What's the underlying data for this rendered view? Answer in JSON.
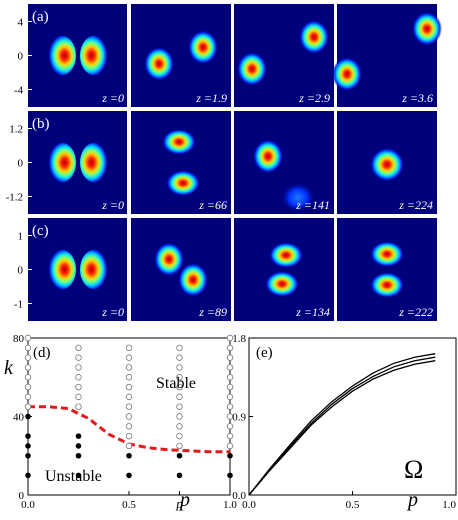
{
  "figure": {
    "colors": {
      "background": "#00007a",
      "frame": "#ffffff",
      "cold": "#001aff",
      "warm": "#ff1e00",
      "dashed_curve": "#e31a1c",
      "text": "#000000"
    },
    "rows": [
      {
        "label": "(a)",
        "y_ticks": [
          "4",
          "0",
          "-4"
        ],
        "panels": [
          {
            "z_label": "z =0",
            "blobs": [
              {
                "dx": -0.17,
                "dy": 0,
                "type": "dipole-left"
              },
              {
                "dx": 0.17,
                "dy": 0,
                "type": "dipole-right"
              }
            ]
          },
          {
            "z_label": "z =1.9",
            "blobs": [
              {
                "dx": -0.22,
                "dy": 0.08,
                "type": "round"
              },
              {
                "dx": 0.22,
                "dy": -0.08,
                "type": "round"
              }
            ]
          },
          {
            "z_label": "z =2.9",
            "blobs": [
              {
                "dx": -0.32,
                "dy": 0.13,
                "type": "round"
              },
              {
                "dx": 0.3,
                "dy": -0.18,
                "type": "round"
              }
            ]
          },
          {
            "z_label": "z =3.6",
            "blobs": [
              {
                "dx": -0.4,
                "dy": 0.18,
                "type": "round"
              },
              {
                "dx": 0.4,
                "dy": -0.26,
                "type": "round"
              }
            ]
          }
        ]
      },
      {
        "label": "(b)",
        "y_ticks": [
          "1.2",
          "0",
          "-1.2"
        ],
        "panels": [
          {
            "z_label": "z =0",
            "blobs": [
              {
                "dx": -0.17,
                "dy": 0,
                "type": "dipole-left"
              },
              {
                "dx": 0.17,
                "dy": 0,
                "type": "dipole-right"
              }
            ]
          },
          {
            "z_label": "z =66",
            "blobs": [
              {
                "dx": -0.02,
                "dy": -0.2,
                "type": "wide"
              },
              {
                "dx": 0.02,
                "dy": 0.2,
                "type": "wide"
              }
            ]
          },
          {
            "z_label": "z =141",
            "blobs": [
              {
                "dx": -0.16,
                "dy": -0.06,
                "type": "round"
              },
              {
                "dx": 0.14,
                "dy": 0.34,
                "type": "faint"
              }
            ]
          },
          {
            "z_label": "z =224",
            "blobs": [
              {
                "dx": 0.0,
                "dy": 0.02,
                "type": "single"
              }
            ]
          }
        ]
      },
      {
        "label": "(c)",
        "y_ticks": [
          "1",
          "0",
          "-1"
        ],
        "panels": [
          {
            "z_label": "z =0",
            "blobs": [
              {
                "dx": -0.17,
                "dy": 0,
                "type": "dipole-left"
              },
              {
                "dx": 0.17,
                "dy": 0,
                "type": "dipole-right"
              }
            ]
          },
          {
            "z_label": "z =89",
            "blobs": [
              {
                "dx": -0.12,
                "dy": -0.1,
                "type": "round"
              },
              {
                "dx": 0.12,
                "dy": 0.1,
                "type": "round"
              }
            ]
          },
          {
            "z_label": "z =134",
            "blobs": [
              {
                "dx": 0.02,
                "dy": -0.14,
                "type": "wide"
              },
              {
                "dx": -0.02,
                "dy": 0.14,
                "type": "wide"
              }
            ]
          },
          {
            "z_label": "z =222",
            "blobs": [
              {
                "dx": 0.0,
                "dy": -0.15,
                "type": "wide"
              },
              {
                "dx": 0.0,
                "dy": 0.15,
                "type": "wide"
              }
            ]
          }
        ]
      }
    ]
  },
  "chart_data": [
    {
      "type": "scatter",
      "panel_label": "(d)",
      "xlabel": "p",
      "ylabel": "k",
      "xlim": [
        0,
        1
      ],
      "ylim": [
        0,
        80
      ],
      "x_ticks": [
        "0.0",
        "0.5",
        "1.0"
      ],
      "x_tick_values": [
        0,
        0.5,
        1
      ],
      "extra_x_ticks": [
        {
          "label": "p",
          "value": 0.75
        }
      ],
      "y_ticks": [
        "0",
        "40",
        "80"
      ],
      "y_tick_values": [
        0,
        40,
        80
      ],
      "region_labels": {
        "upper": "Stable",
        "lower": "Unstable"
      },
      "series": [
        {
          "marker": "open",
          "points": [
            [
              0,
              45
            ],
            [
              0,
              50
            ],
            [
              0,
              55
            ],
            [
              0,
              60
            ],
            [
              0,
              65
            ],
            [
              0,
              70
            ],
            [
              0,
              75
            ],
            [
              0,
              80
            ],
            [
              0.25,
              45
            ],
            [
              0.25,
              50
            ],
            [
              0.25,
              55
            ],
            [
              0.25,
              60
            ],
            [
              0.25,
              65
            ],
            [
              0.25,
              70
            ],
            [
              0.25,
              75
            ],
            [
              0.5,
              25
            ],
            [
              0.5,
              30
            ],
            [
              0.5,
              35
            ],
            [
              0.5,
              40
            ],
            [
              0.5,
              45
            ],
            [
              0.5,
              50
            ],
            [
              0.5,
              55
            ],
            [
              0.5,
              60
            ],
            [
              0.5,
              65
            ],
            [
              0.5,
              70
            ],
            [
              0.5,
              75
            ],
            [
              0.75,
              25
            ],
            [
              0.75,
              30
            ],
            [
              0.75,
              35
            ],
            [
              0.75,
              40
            ],
            [
              0.75,
              45
            ],
            [
              0.75,
              50
            ],
            [
              0.75,
              55
            ],
            [
              0.75,
              60
            ],
            [
              0.75,
              65
            ],
            [
              0.75,
              70
            ],
            [
              0.75,
              75
            ],
            [
              1,
              25
            ],
            [
              1,
              30
            ],
            [
              1,
              35
            ],
            [
              1,
              40
            ],
            [
              1,
              45
            ],
            [
              1,
              50
            ],
            [
              1,
              55
            ],
            [
              1,
              60
            ],
            [
              1,
              65
            ],
            [
              1,
              70
            ],
            [
              1,
              75
            ],
            [
              1,
              80
            ]
          ]
        },
        {
          "marker": "filled",
          "points": [
            [
              0,
              10
            ],
            [
              0,
              20
            ],
            [
              0,
              25
            ],
            [
              0,
              30
            ],
            [
              0,
              40
            ],
            [
              0.25,
              10
            ],
            [
              0.25,
              20
            ],
            [
              0.25,
              25
            ],
            [
              0.25,
              30
            ],
            [
              0.5,
              10
            ],
            [
              0.5,
              20
            ],
            [
              0.75,
              10
            ],
            [
              0.75,
              20
            ],
            [
              1,
              10
            ],
            [
              1,
              20
            ]
          ]
        }
      ],
      "boundary": {
        "style": "dashed",
        "x": [
          0,
          0.1,
          0.2,
          0.3,
          0.4,
          0.5,
          0.6,
          0.7,
          0.8,
          0.9,
          1.0
        ],
        "y": [
          45,
          45,
          44,
          39,
          31,
          26,
          24,
          23,
          22.5,
          22,
          22
        ]
      }
    },
    {
      "type": "line",
      "panel_label": "(e)",
      "xlabel": "p",
      "ylabel": "",
      "annotation": "Ω",
      "xlim": [
        0,
        1
      ],
      "ylim": [
        0,
        1.8
      ],
      "x_ticks": [
        "0.0",
        "0.5",
        "1.0"
      ],
      "x_tick_values": [
        0,
        0.5,
        1
      ],
      "y_ticks": [
        "0.0",
        "0.9",
        "1.8"
      ],
      "y_tick_values": [
        0,
        0.9,
        1.8
      ],
      "series": [
        {
          "x": [
            0,
            0.1,
            0.2,
            0.3,
            0.4,
            0.5,
            0.6,
            0.7,
            0.8,
            0.9
          ],
          "y": [
            0,
            0.3,
            0.58,
            0.85,
            1.07,
            1.25,
            1.4,
            1.51,
            1.58,
            1.62
          ]
        },
        {
          "x": [
            0,
            0.1,
            0.2,
            0.3,
            0.4,
            0.5,
            0.6,
            0.7,
            0.8,
            0.9
          ],
          "y": [
            0,
            0.29,
            0.56,
            0.82,
            1.04,
            1.22,
            1.36,
            1.47,
            1.54,
            1.58
          ]
        },
        {
          "x": [
            0,
            0.1,
            0.2,
            0.3,
            0.4,
            0.5,
            0.6,
            0.7,
            0.8,
            0.9
          ],
          "y": [
            0,
            0.28,
            0.54,
            0.8,
            1.01,
            1.19,
            1.33,
            1.43,
            1.5,
            1.54
          ]
        }
      ]
    }
  ]
}
